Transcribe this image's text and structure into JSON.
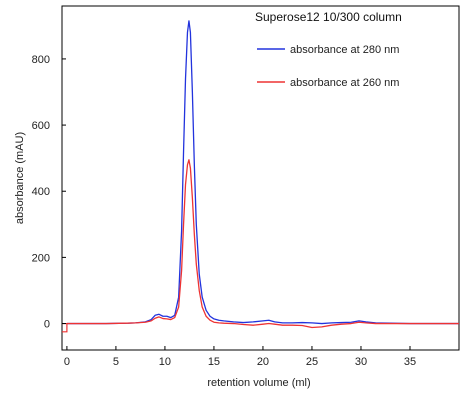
{
  "chart_data": {
    "type": "line",
    "title": "Superose12 10/300 column",
    "xlabel": "retention volume (ml)",
    "ylabel": "absorbance (mAU)",
    "xlim": [
      -0.5,
      40
    ],
    "ylim": [
      -80,
      960
    ],
    "xticks": [
      0,
      5,
      10,
      15,
      20,
      25,
      30,
      35
    ],
    "yticks": [
      0,
      200,
      400,
      600,
      800
    ],
    "grid": false,
    "legend_position": "top-right",
    "series": [
      {
        "name": "absorbance at 280 nm",
        "color": "#2233dd",
        "x": [
          0,
          2,
          4,
          6,
          7,
          8,
          8.6,
          9.0,
          9.4,
          9.8,
          10.2,
          10.6,
          11.0,
          11.4,
          11.7,
          11.9,
          12.1,
          12.3,
          12.45,
          12.6,
          12.8,
          13.0,
          13.2,
          13.5,
          13.8,
          14.2,
          14.6,
          15.0,
          15.5,
          16.0,
          17.0,
          18.0,
          19.0,
          20.0,
          20.6,
          21.2,
          22.0,
          23.0,
          24.0,
          25.0,
          26.0,
          27.0,
          28.0,
          29.0,
          29.8,
          30.5,
          31.5,
          33.0,
          35.0,
          37.0,
          39.0,
          40.0
        ],
        "y": [
          0,
          0,
          0,
          1,
          2,
          5,
          12,
          25,
          28,
          22,
          22,
          18,
          25,
          80,
          280,
          520,
          740,
          880,
          915,
          880,
          700,
          480,
          300,
          150,
          80,
          40,
          22,
          14,
          10,
          8,
          5,
          3,
          5,
          8,
          10,
          5,
          2,
          2,
          3,
          2,
          0,
          2,
          3,
          4,
          8,
          5,
          2,
          1,
          0,
          0,
          0,
          0
        ]
      },
      {
        "name": "absorbance at 260 nm",
        "color": "#ee3333",
        "x": [
          0,
          2,
          4,
          6,
          7,
          8,
          8.6,
          9.0,
          9.4,
          9.8,
          10.2,
          10.6,
          11.0,
          11.4,
          11.7,
          11.9,
          12.1,
          12.3,
          12.45,
          12.6,
          12.8,
          13.0,
          13.2,
          13.5,
          13.8,
          14.2,
          14.6,
          15.0,
          15.5,
          16.0,
          17.0,
          18.0,
          19.0,
          20.0,
          20.6,
          21.2,
          22.0,
          23.0,
          24.0,
          25.0,
          26.0,
          27.0,
          28.0,
          29.0,
          29.8,
          30.5,
          31.5,
          33.0,
          35.0,
          37.0,
          39.0,
          40.0
        ],
        "y": [
          0,
          0,
          0,
          1,
          2,
          4,
          8,
          16,
          20,
          15,
          14,
          12,
          18,
          50,
          160,
          300,
          420,
          480,
          495,
          470,
          380,
          270,
          180,
          100,
          50,
          22,
          10,
          4,
          2,
          1,
          0,
          -3,
          -5,
          -2,
          0,
          -2,
          -5,
          -5,
          -6,
          -12,
          -10,
          -5,
          -2,
          0,
          4,
          2,
          0,
          0,
          0,
          0,
          0,
          0
        ]
      }
    ]
  }
}
